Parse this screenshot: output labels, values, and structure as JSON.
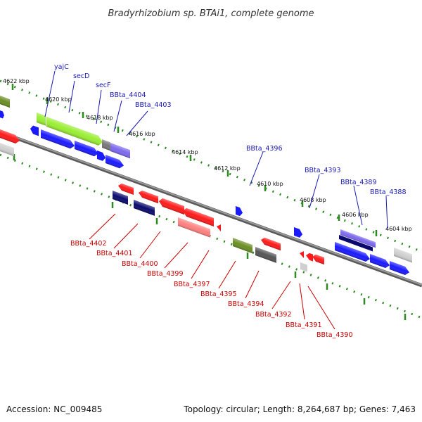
{
  "title": "Bradyrhizobium sp. BTAi1, complete genome",
  "footer": {
    "accession": "Accession: NC_009485",
    "summary": "Topology: circular; Length: 8,264,687 bp; Genes: 7,463"
  },
  "kbp_labels": [
    "4622 kbp",
    "4620 kbp",
    "4618 kbp",
    "4616 kbp",
    "4614 kbp",
    "4612 kbp",
    "4610 kbp",
    "4608 kbp",
    "4606 kbp",
    "4604 kbp"
  ],
  "colors": {
    "blue": "#1a1aff",
    "navy": "#0a0a6e",
    "red": "#ff1a1a",
    "pink": "#ff8080",
    "green": "#6b8e23",
    "lime": "#99ee33",
    "gray": "#555555",
    "lightgray": "#cfcfcf",
    "purple": "#7b68ee",
    "tick": "#2e8b22",
    "backbone": "#888888",
    "blue_label": "#1a1ab3",
    "red_label": "#cc0000"
  },
  "top_labels": [
    "yajC",
    "secD",
    "secF",
    "BBta_4404",
    "BBta_4403",
    "BBta_4396",
    "BBta_4393",
    "BBta_4389",
    "BBta_4388"
  ],
  "bottom_labels": [
    "BBta_4402",
    "BBta_4401",
    "BBta_4400",
    "BBta_4399",
    "BBta_4397",
    "BBta_4395",
    "BBta_4394",
    "BBta_4392",
    "BBta_4391",
    "BBta_4390"
  ]
}
